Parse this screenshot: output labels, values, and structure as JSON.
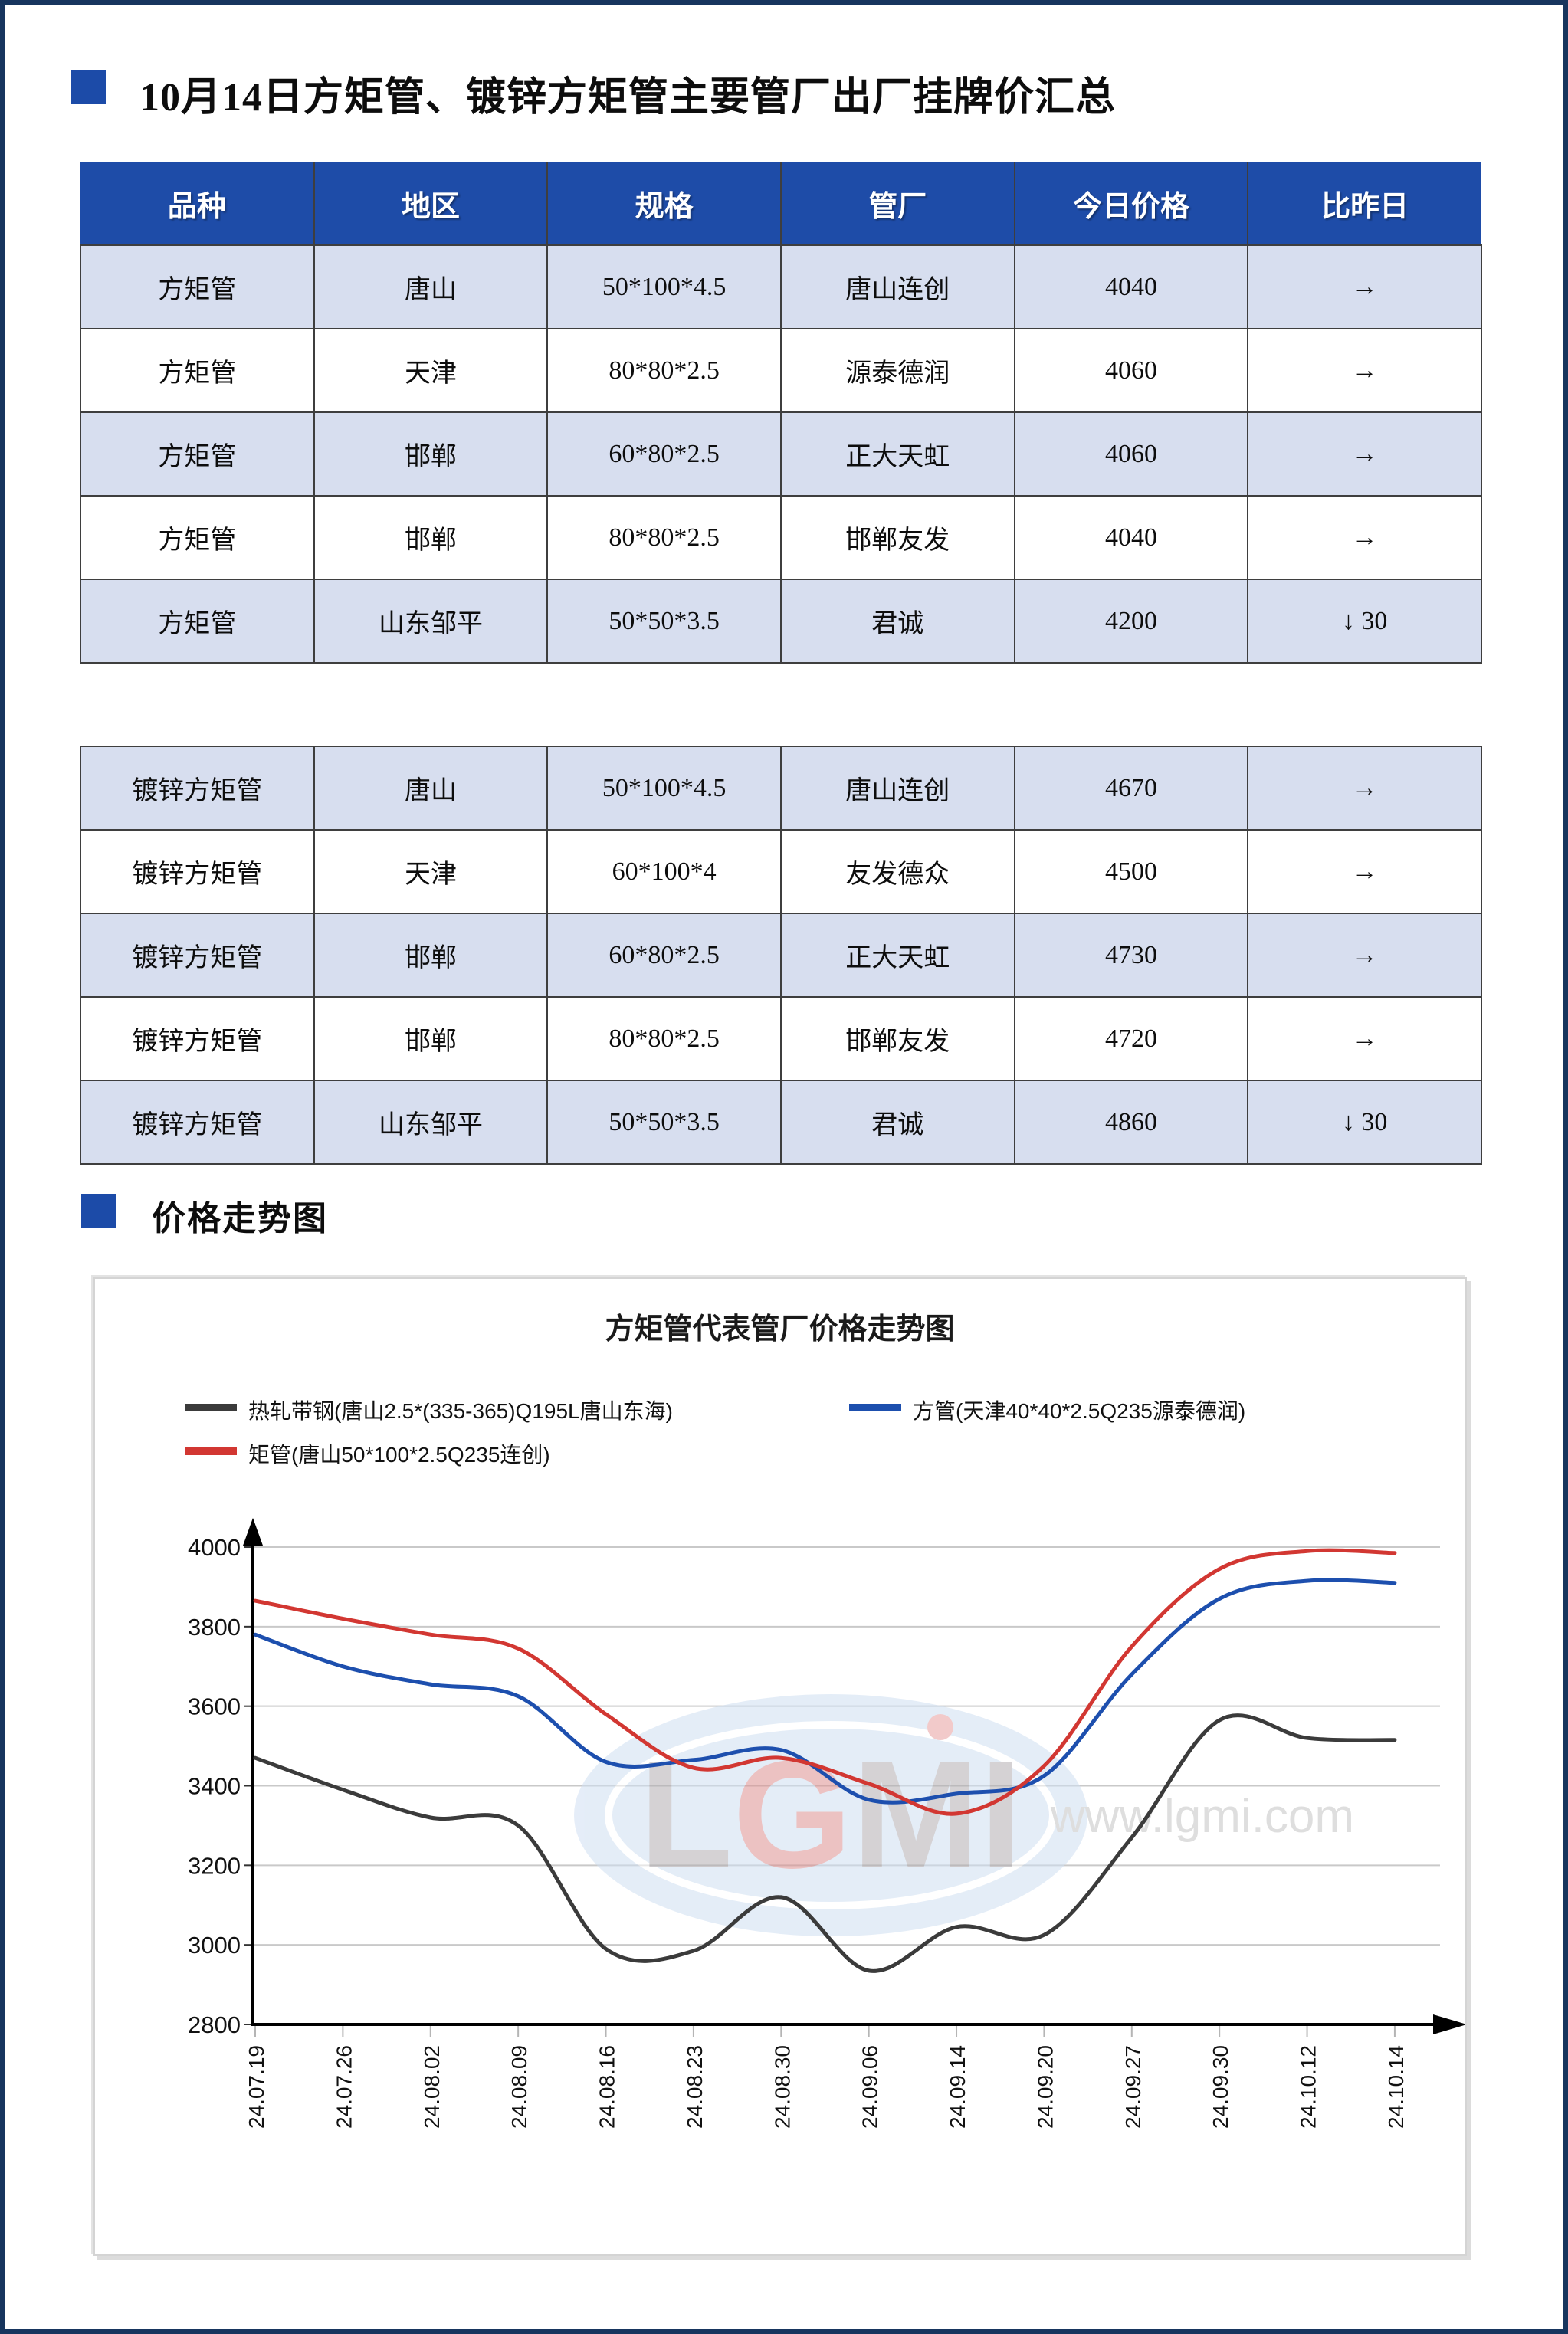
{
  "page": {
    "title": "10月14日方矩管、镀锌方矩管主要管厂出厂挂牌价汇总",
    "section2_title": "价格走势图"
  },
  "table": {
    "headers": [
      "品种",
      "地区",
      "规格",
      "管厂",
      "今日价格",
      "比昨日"
    ],
    "rows": [
      {
        "cells": [
          "方矩管",
          "唐山",
          "50*100*4.5",
          "唐山连创",
          "4040"
        ],
        "change": {
          "type": "flat",
          "symbol": "→",
          "value": ""
        }
      },
      {
        "cells": [
          "方矩管",
          "天津",
          "80*80*2.5",
          "源泰德润",
          "4060"
        ],
        "change": {
          "type": "flat",
          "symbol": "→",
          "value": ""
        }
      },
      {
        "cells": [
          "方矩管",
          "邯郸",
          "60*80*2.5",
          "正大天虹",
          "4060"
        ],
        "change": {
          "type": "flat",
          "symbol": "→",
          "value": ""
        }
      },
      {
        "cells": [
          "方矩管",
          "邯郸",
          "80*80*2.5",
          "邯郸友发",
          "4040"
        ],
        "change": {
          "type": "flat",
          "symbol": "→",
          "value": ""
        }
      },
      {
        "cells": [
          "方矩管",
          "山东邹平",
          "50*50*3.5",
          "君诚",
          "4200"
        ],
        "change": {
          "type": "down",
          "symbol": "↓",
          "value": "30"
        }
      },
      {
        "separator": true
      },
      {
        "cells": [
          "镀锌方矩管",
          "唐山",
          "50*100*4.5",
          "唐山连创",
          "4670"
        ],
        "change": {
          "type": "flat",
          "symbol": "→",
          "value": ""
        }
      },
      {
        "cells": [
          "镀锌方矩管",
          "天津",
          "60*100*4",
          "友发德众",
          "4500"
        ],
        "change": {
          "type": "flat",
          "symbol": "→",
          "value": ""
        }
      },
      {
        "cells": [
          "镀锌方矩管",
          "邯郸",
          "60*80*2.5",
          "正大天虹",
          "4730"
        ],
        "change": {
          "type": "flat",
          "symbol": "→",
          "value": ""
        }
      },
      {
        "cells": [
          "镀锌方矩管",
          "邯郸",
          "80*80*2.5",
          "邯郸友发",
          "4720"
        ],
        "change": {
          "type": "flat",
          "symbol": "→",
          "value": ""
        }
      },
      {
        "cells": [
          "镀锌方矩管",
          "山东邹平",
          "50*50*3.5",
          "君诚",
          "4860"
        ],
        "change": {
          "type": "down",
          "symbol": "↓",
          "value": "30"
        }
      }
    ],
    "status_colors": {
      "down": "#1eae54",
      "flat": "#111111"
    }
  },
  "chart_data": {
    "type": "line",
    "title": "方矩管代表管厂价格走势图",
    "categories": [
      "24.07.19",
      "24.07.26",
      "24.08.02",
      "24.08.09",
      "24.08.16",
      "24.08.23",
      "24.08.30",
      "24.09.06",
      "24.09.14",
      "24.09.20",
      "24.09.27",
      "24.09.30",
      "24.10.12",
      "24.10.14"
    ],
    "series": [
      {
        "name": "热轧带钢(唐山2.5*(335-365)Q195L唐山东海)",
        "color": "#3b3b3b",
        "values": [
          3470,
          3390,
          3320,
          3300,
          2990,
          2985,
          3120,
          2935,
          3045,
          3025,
          3270,
          3565,
          3520,
          3515
        ]
      },
      {
        "name": "方管(天津40*40*2.5Q235源泰德润)",
        "color": "#1d4fae",
        "values": [
          3780,
          3700,
          3655,
          3625,
          3460,
          3465,
          3490,
          3365,
          3380,
          3425,
          3680,
          3870,
          3915,
          3910
        ]
      },
      {
        "name": "矩管(唐山50*100*2.5Q235连创)",
        "color": "#d23732",
        "values": [
          3865,
          3820,
          3780,
          3745,
          3580,
          3445,
          3470,
          3405,
          3330,
          3450,
          3750,
          3945,
          3990,
          3985
        ]
      }
    ],
    "xlabel": "",
    "ylabel": "",
    "ylim": [
      2800,
      4000
    ],
    "ytick_step": 200,
    "grid": true,
    "legend_position": "top",
    "watermark": {
      "logo": "LGMI",
      "url": "www.lgmi.com"
    }
  }
}
